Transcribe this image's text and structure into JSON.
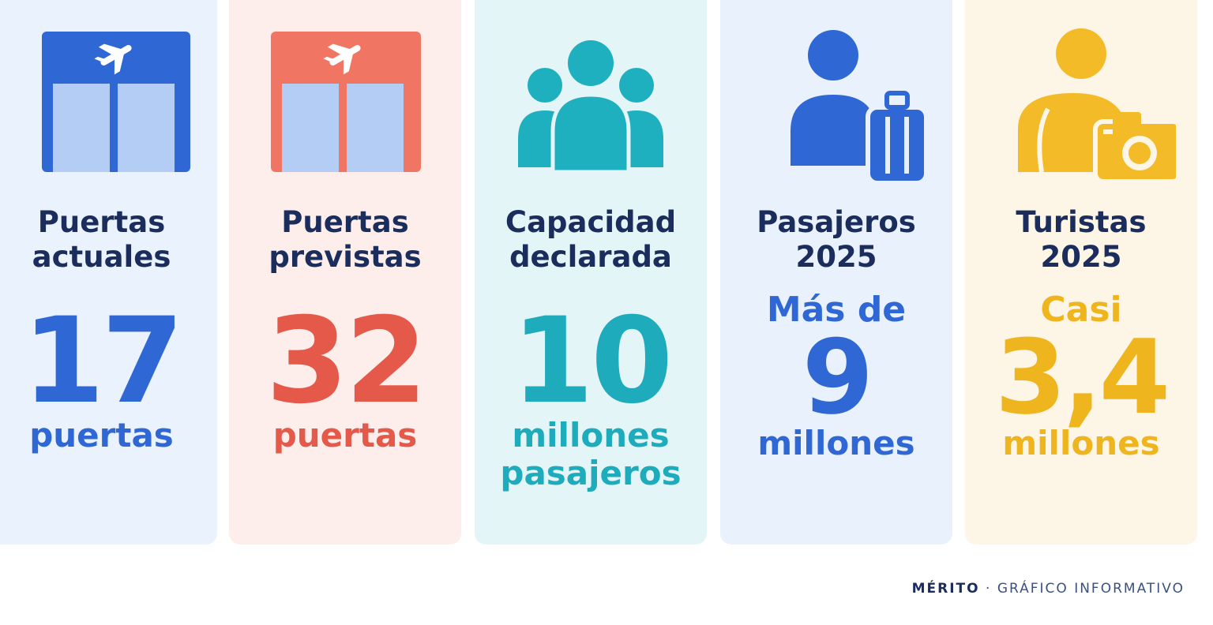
{
  "cards": [
    {
      "title": [
        "Puertas",
        "actuales"
      ],
      "value": "17",
      "unit": [
        "puertas"
      ]
    },
    {
      "title": [
        "Puertas",
        "previstas"
      ],
      "value": "32",
      "unit": [
        "puertas"
      ]
    },
    {
      "title": [
        "Capacidad",
        "declarada"
      ],
      "value": "10",
      "unit": [
        "millones",
        "pasajeros"
      ]
    },
    {
      "title": [
        "Pasajeros",
        "2025"
      ],
      "prefix": "Más de",
      "value": "9",
      "unit": [
        "millones"
      ]
    },
    {
      "title": [
        "Turistas",
        "2025"
      ],
      "prefix": "Casi",
      "value": "3,4",
      "unit": [
        "millones"
      ]
    }
  ],
  "footer": {
    "brand": "MÉRITO",
    "separator": "·",
    "label": "GRÁFICO INFORMATIVO"
  }
}
